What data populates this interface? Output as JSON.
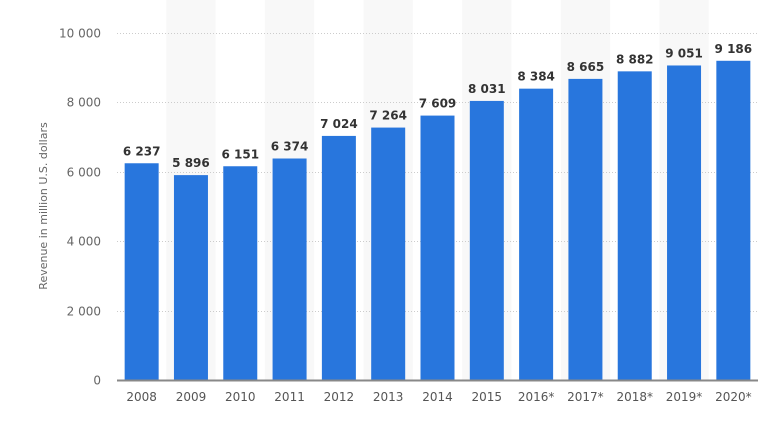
{
  "chart_data": {
    "type": "bar",
    "title": "",
    "xlabel": "",
    "ylabel": "Revenue in million U.S. dollars",
    "ylim": [
      0,
      10000
    ],
    "yticks": [
      0,
      2000,
      4000,
      6000,
      8000,
      10000
    ],
    "ytick_labels": [
      "0",
      "2 000",
      "4 000",
      "6 000",
      "8 000",
      "10 000"
    ],
    "grid": true,
    "categories": [
      "2008",
      "2009",
      "2010",
      "2011",
      "2012",
      "2013",
      "2014",
      "2015",
      "2016*",
      "2017*",
      "2018*",
      "2019*",
      "2020*"
    ],
    "values": [
      6237,
      5896,
      6151,
      6374,
      7024,
      7264,
      7609,
      8031,
      8384,
      8665,
      8882,
      9051,
      9186
    ],
    "value_labels": [
      "6 237",
      "5 896",
      "6 151",
      "6 374",
      "7 024",
      "7 264",
      "7 609",
      "8 031",
      "8 384",
      "8 665",
      "8 882",
      "9 051",
      "9 186"
    ],
    "colors": {
      "bar": "#2876dd",
      "band": "#f8f8f8",
      "grid": "#cccccc",
      "axis": "#888888"
    }
  }
}
